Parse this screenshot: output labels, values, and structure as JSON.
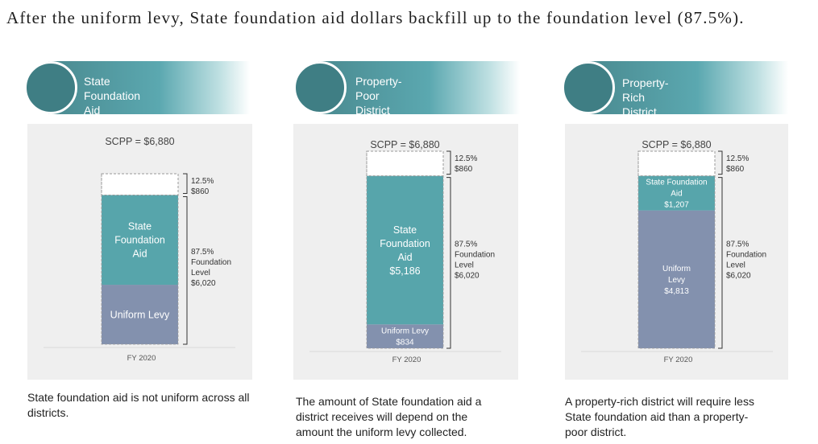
{
  "title": "After the uniform levy, State foundation aid dollars backfill up to the foundation level (87.5%).",
  "colors": {
    "aid": "#57a5ab",
    "levy": "#8391ae",
    "banner_dark": "#3f7e84",
    "box": "#efefef"
  },
  "panels": [
    {
      "banner": [
        "State Foundation",
        "Aid"
      ],
      "caption": [
        "State foundation aid is not uniform across all",
        "districts."
      ],
      "chart_data": {
        "type": "bar",
        "stacked": true,
        "categories": [
          "FY 2020"
        ],
        "total_label": "SCPP = $6,880",
        "total": 6880,
        "segments": [
          {
            "name": "Uniform Levy",
            "value": 2400,
            "color": "#8391ae",
            "label": [
              "Uniform Levy"
            ],
            "text_color": "#ffffff",
            "small": false
          },
          {
            "name": "State Foundation Aid",
            "value": 3620,
            "color": "#57a5ab",
            "label": [
              "State",
              "Foundation",
              "Aid"
            ],
            "text_color": "#ffffff",
            "small": false
          },
          {
            "name": "Gap",
            "value": 860,
            "color": "#ffffff",
            "label": [],
            "text_color": "#333333",
            "small": false
          }
        ],
        "brackets": [
          {
            "label": [
              "12.5%",
              "$860"
            ]
          },
          {
            "label": [
              "87.5%",
              "Foundation",
              "Level",
              "$6,020"
            ]
          }
        ]
      }
    },
    {
      "banner": [
        "Property-Poor",
        "District"
      ],
      "caption": [
        "The amount of State foundation aid a",
        "district receives will depend on the",
        "amount the uniform levy collected."
      ],
      "chart_data": {
        "type": "bar",
        "stacked": true,
        "categories": [
          "FY 2020"
        ],
        "total_label": "SCPP = $6,880",
        "total": 6880,
        "segments": [
          {
            "name": "Uniform Levy",
            "value": 834,
            "color": "#8391ae",
            "label": [
              "Uniform Levy",
              "$834"
            ],
            "text_color": "#ffffff",
            "small": true
          },
          {
            "name": "State Foundation Aid",
            "value": 5186,
            "color": "#57a5ab",
            "label": [
              "State",
              "Foundation",
              "Aid",
              "$5,186"
            ],
            "text_color": "#ffffff",
            "small": false
          },
          {
            "name": "Gap",
            "value": 860,
            "color": "#ffffff",
            "label": [],
            "text_color": "#333333",
            "small": false
          }
        ],
        "brackets": [
          {
            "label": [
              "12.5%",
              "$860"
            ]
          },
          {
            "label": [
              "87.5%",
              "Foundation",
              "Level",
              "$6,020"
            ]
          }
        ]
      }
    },
    {
      "banner": [
        "Property-Rich",
        "District"
      ],
      "caption": [
        "A property-rich district will require less",
        "State foundation aid than a property-",
        "poor district."
      ],
      "chart_data": {
        "type": "bar",
        "stacked": true,
        "categories": [
          "FY 2020"
        ],
        "total_label": "SCPP = $6,880",
        "total": 6880,
        "segments": [
          {
            "name": "Uniform Levy",
            "value": 4813,
            "color": "#8391ae",
            "label": [
              "Uniform",
              "Levy",
              "$4,813"
            ],
            "text_color": "#ffffff",
            "small": true
          },
          {
            "name": "State Foundation Aid",
            "value": 1207,
            "color": "#57a5ab",
            "label": [
              "State Foundation",
              "Aid",
              "$1,207"
            ],
            "text_color": "#ffffff",
            "small": true
          },
          {
            "name": "Gap",
            "value": 860,
            "color": "#ffffff",
            "label": [],
            "text_color": "#333333",
            "small": false
          }
        ],
        "brackets": [
          {
            "label": [
              "12.5%",
              "$860"
            ]
          },
          {
            "label": [
              "87.5%",
              "Foundation",
              "Level",
              "$6,020"
            ]
          }
        ]
      }
    }
  ]
}
